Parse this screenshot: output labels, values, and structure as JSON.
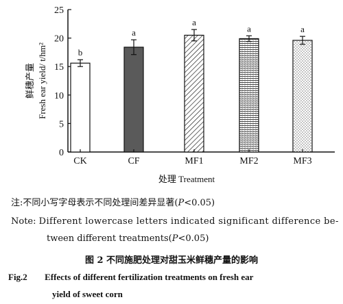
{
  "chart_data": {
    "type": "bar",
    "categories": [
      "CK",
      "CF",
      "MF1",
      "MF2",
      "MF3"
    ],
    "values": [
      15.6,
      18.4,
      20.5,
      19.9,
      19.6
    ],
    "errors": [
      0.6,
      1.3,
      1.0,
      0.5,
      0.7
    ],
    "significance_letters": [
      "b",
      "a",
      "a",
      "a",
      "a"
    ],
    "bar_fills": [
      "white",
      "dark-gray",
      "diagonal-hatch",
      "horizontal-hatch",
      "dots"
    ],
    "ylim": [
      0,
      25
    ],
    "yticks": [
      "0",
      "5",
      "10",
      "15",
      "20",
      "25"
    ],
    "ylabel_cn": "鲜穗产量",
    "ylabel_en": "Fresh ear yield/ t/hm²",
    "xlabel": "处理 Treatment",
    "colors": {
      "bar_stroke": "#111111",
      "dark_bar": "#5a5a5a"
    }
  },
  "note": {
    "cn": "注:不同小写字母表示不同处理间差异显著(",
    "cn_p": "P",
    "cn_tail": "<0.05)",
    "en_label": "Note:",
    "en_line1": "Different lowercase letters indicated significant difference be-",
    "en_line2": "tween different treatments(",
    "en_p": "P",
    "en_tail": "<0.05)"
  },
  "caption": {
    "cn": "图 2   不同施肥处理对甜玉米鲜穗产量的影响",
    "en_label": "Fig.2",
    "en_line1": "Effects of different fertilization treatments on fresh ear",
    "en_line2": "yield of sweet corn"
  }
}
